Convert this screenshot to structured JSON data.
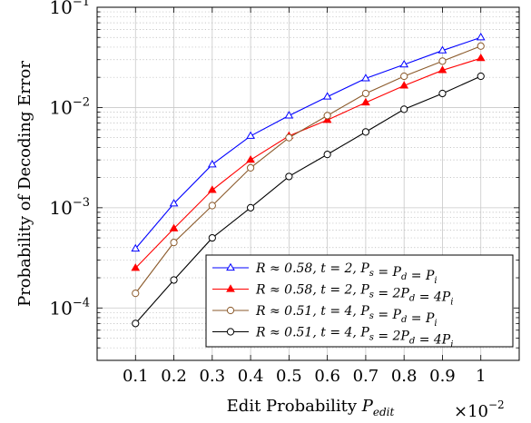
{
  "chart_data": {
    "type": "line",
    "xlabel": "Edit Probability P_edit",
    "ylabel": "Probability of Decoding Error",
    "x_multiplier": "×10^−2",
    "yscale": "log",
    "xlim": [
      0.0,
      1.1
    ],
    "ylim": [
      3e-05,
      0.1
    ],
    "xticks": [
      "0.1",
      "0.2",
      "0.3",
      "0.4",
      "0.5",
      "0.6",
      "0.7",
      "0.8",
      "0.9",
      "1"
    ],
    "yticks": [
      {
        "base": "10",
        "exp": "−4",
        "value": 0.0001
      },
      {
        "base": "10",
        "exp": "−3",
        "value": 0.001
      },
      {
        "base": "10",
        "exp": "−2",
        "value": 0.01
      },
      {
        "base": "10",
        "exp": "−1",
        "value": 0.1
      }
    ],
    "grid": true,
    "legend_position": "bottom-right",
    "x": [
      0.1,
      0.2,
      0.3,
      0.4,
      0.5,
      0.6,
      0.7,
      0.8,
      0.9,
      1.0
    ],
    "series": [
      {
        "name": "R ≈ 0.58, t = 2, P_s = P_d = P_i",
        "color": "#0000ff",
        "marker": "triangle",
        "values": [
          0.00039,
          0.0011,
          0.0027,
          0.0052,
          0.0083,
          0.0128,
          0.0195,
          0.0268,
          0.037,
          0.05
        ]
      },
      {
        "name": "R ≈ 0.58, t = 2, P_s = 2P_d = 4P_i",
        "color": "#ff0000",
        "marker": "triangle-filled",
        "values": [
          0.00025,
          0.00062,
          0.0015,
          0.003,
          0.0052,
          0.0075,
          0.0112,
          0.0165,
          0.0235,
          0.031
        ]
      },
      {
        "name": "R ≈ 0.51, t = 4, P_s = P_d = P_i",
        "color": "#8b5a2b",
        "marker": "circle",
        "values": [
          0.00014,
          0.00045,
          0.00105,
          0.0025,
          0.005,
          0.0083,
          0.0138,
          0.0205,
          0.029,
          0.041
        ]
      },
      {
        "name": "R ≈ 0.51, t = 4, P_s = 2P_d = 4P_i",
        "color": "#000000",
        "marker": "circle",
        "values": [
          7e-05,
          0.00019,
          0.0005,
          0.001,
          0.00205,
          0.0034,
          0.0057,
          0.0096,
          0.0138,
          0.0205
        ]
      }
    ]
  }
}
